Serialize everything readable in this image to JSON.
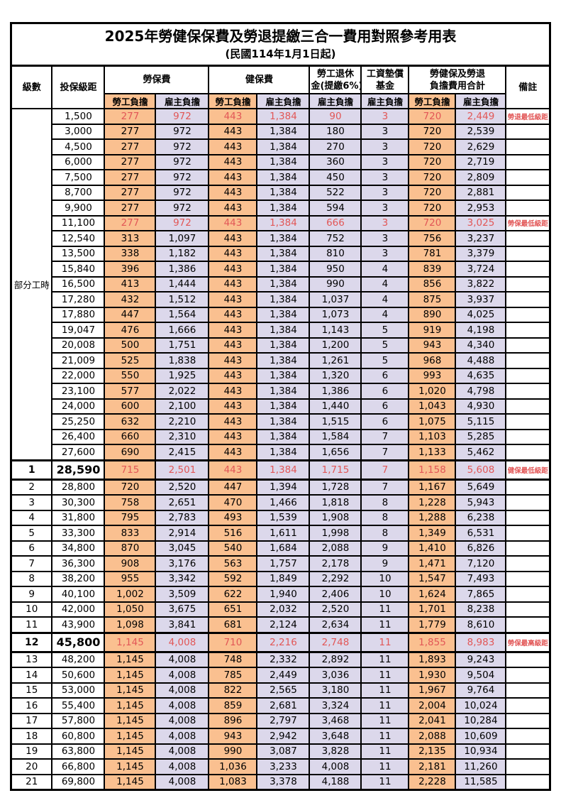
{
  "title": "2025年勞健保保費及勞退提繳三合一費用對照參考用表",
  "subtitle": "(民國114年1月1日起)",
  "header": {
    "level": "級數",
    "bracket": "投保級距",
    "labor_insurance": "勞保費",
    "health_insurance": "健保費",
    "pension_line1": "勞工退休",
    "pension_line2": "金(提繳6%)",
    "wage_fund_line1": "工資墊償",
    "wage_fund_line2": "基金",
    "total_line1": "勞健保及勞退",
    "total_line2": "負擔費用合計",
    "remarks": "備註",
    "employee_share": "勞工負擔",
    "employer_share": "雇主負擔"
  },
  "part_time_label": "部分工時",
  "colors": {
    "employee_fill": "#FAC090",
    "employer_fill": "#DCD8EB",
    "highlight_red": "#E25757",
    "border_black": "#000000"
  },
  "rows": [
    {
      "level": "",
      "bracket": "1,500",
      "li_emp": "277",
      "li_er": "972",
      "hi_emp": "443",
      "hi_er": "1,384",
      "pension": "90",
      "fund": "3",
      "tot_emp": "720",
      "tot_er": "2,449",
      "remark": "勞退最低級距",
      "highlight": true,
      "emphasis": false
    },
    {
      "level": "",
      "bracket": "3,000",
      "li_emp": "277",
      "li_er": "972",
      "hi_emp": "443",
      "hi_er": "1,384",
      "pension": "180",
      "fund": "3",
      "tot_emp": "720",
      "tot_er": "2,539",
      "remark": "",
      "highlight": false,
      "emphasis": false
    },
    {
      "level": "",
      "bracket": "4,500",
      "li_emp": "277",
      "li_er": "972",
      "hi_emp": "443",
      "hi_er": "1,384",
      "pension": "270",
      "fund": "3",
      "tot_emp": "720",
      "tot_er": "2,629",
      "remark": "",
      "highlight": false,
      "emphasis": false
    },
    {
      "level": "",
      "bracket": "6,000",
      "li_emp": "277",
      "li_er": "972",
      "hi_emp": "443",
      "hi_er": "1,384",
      "pension": "360",
      "fund": "3",
      "tot_emp": "720",
      "tot_er": "2,719",
      "remark": "",
      "highlight": false,
      "emphasis": false
    },
    {
      "level": "",
      "bracket": "7,500",
      "li_emp": "277",
      "li_er": "972",
      "hi_emp": "443",
      "hi_er": "1,384",
      "pension": "450",
      "fund": "3",
      "tot_emp": "720",
      "tot_er": "2,809",
      "remark": "",
      "highlight": false,
      "emphasis": false
    },
    {
      "level": "",
      "bracket": "8,700",
      "li_emp": "277",
      "li_er": "972",
      "hi_emp": "443",
      "hi_er": "1,384",
      "pension": "522",
      "fund": "3",
      "tot_emp": "720",
      "tot_er": "2,881",
      "remark": "",
      "highlight": false,
      "emphasis": false
    },
    {
      "level": "",
      "bracket": "9,900",
      "li_emp": "277",
      "li_er": "972",
      "hi_emp": "443",
      "hi_er": "1,384",
      "pension": "594",
      "fund": "3",
      "tot_emp": "720",
      "tot_er": "2,953",
      "remark": "",
      "highlight": false,
      "emphasis": false
    },
    {
      "level": "",
      "bracket": "11,100",
      "li_emp": "277",
      "li_er": "972",
      "hi_emp": "443",
      "hi_er": "1,384",
      "pension": "666",
      "fund": "3",
      "tot_emp": "720",
      "tot_er": "3,025",
      "remark": "勞保最低級距",
      "highlight": true,
      "emphasis": false
    },
    {
      "level": "",
      "bracket": "12,540",
      "li_emp": "313",
      "li_er": "1,097",
      "hi_emp": "443",
      "hi_er": "1,384",
      "pension": "752",
      "fund": "3",
      "tot_emp": "756",
      "tot_er": "3,237",
      "remark": "",
      "highlight": false,
      "emphasis": false
    },
    {
      "level": "",
      "bracket": "13,500",
      "li_emp": "338",
      "li_er": "1,182",
      "hi_emp": "443",
      "hi_er": "1,384",
      "pension": "810",
      "fund": "3",
      "tot_emp": "781",
      "tot_er": "3,379",
      "remark": "",
      "highlight": false,
      "emphasis": false
    },
    {
      "level": "",
      "bracket": "15,840",
      "li_emp": "396",
      "li_er": "1,386",
      "hi_emp": "443",
      "hi_er": "1,384",
      "pension": "950",
      "fund": "4",
      "tot_emp": "839",
      "tot_er": "3,724",
      "remark": "",
      "highlight": false,
      "emphasis": false
    },
    {
      "level": "",
      "bracket": "16,500",
      "li_emp": "413",
      "li_er": "1,444",
      "hi_emp": "443",
      "hi_er": "1,384",
      "pension": "990",
      "fund": "4",
      "tot_emp": "856",
      "tot_er": "3,822",
      "remark": "",
      "highlight": false,
      "emphasis": false
    },
    {
      "level": "",
      "bracket": "17,280",
      "li_emp": "432",
      "li_er": "1,512",
      "hi_emp": "443",
      "hi_er": "1,384",
      "pension": "1,037",
      "fund": "4",
      "tot_emp": "875",
      "tot_er": "3,937",
      "remark": "",
      "highlight": false,
      "emphasis": false
    },
    {
      "level": "",
      "bracket": "17,880",
      "li_emp": "447",
      "li_er": "1,564",
      "hi_emp": "443",
      "hi_er": "1,384",
      "pension": "1,073",
      "fund": "4",
      "tot_emp": "890",
      "tot_er": "4,025",
      "remark": "",
      "highlight": false,
      "emphasis": false
    },
    {
      "level": "",
      "bracket": "19,047",
      "li_emp": "476",
      "li_er": "1,666",
      "hi_emp": "443",
      "hi_er": "1,384",
      "pension": "1,143",
      "fund": "5",
      "tot_emp": "919",
      "tot_er": "4,198",
      "remark": "",
      "highlight": false,
      "emphasis": false
    },
    {
      "level": "",
      "bracket": "20,008",
      "li_emp": "500",
      "li_er": "1,751",
      "hi_emp": "443",
      "hi_er": "1,384",
      "pension": "1,200",
      "fund": "5",
      "tot_emp": "943",
      "tot_er": "4,340",
      "remark": "",
      "highlight": false,
      "emphasis": false
    },
    {
      "level": "",
      "bracket": "21,009",
      "li_emp": "525",
      "li_er": "1,838",
      "hi_emp": "443",
      "hi_er": "1,384",
      "pension": "1,261",
      "fund": "5",
      "tot_emp": "968",
      "tot_er": "4,488",
      "remark": "",
      "highlight": false,
      "emphasis": false
    },
    {
      "level": "",
      "bracket": "22,000",
      "li_emp": "550",
      "li_er": "1,925",
      "hi_emp": "443",
      "hi_er": "1,384",
      "pension": "1,320",
      "fund": "6",
      "tot_emp": "993",
      "tot_er": "4,635",
      "remark": "",
      "highlight": false,
      "emphasis": false
    },
    {
      "level": "",
      "bracket": "23,100",
      "li_emp": "577",
      "li_er": "2,022",
      "hi_emp": "443",
      "hi_er": "1,384",
      "pension": "1,386",
      "fund": "6",
      "tot_emp": "1,020",
      "tot_er": "4,798",
      "remark": "",
      "highlight": false,
      "emphasis": false
    },
    {
      "level": "",
      "bracket": "24,000",
      "li_emp": "600",
      "li_er": "2,100",
      "hi_emp": "443",
      "hi_er": "1,384",
      "pension": "1,440",
      "fund": "6",
      "tot_emp": "1,043",
      "tot_er": "4,930",
      "remark": "",
      "highlight": false,
      "emphasis": false
    },
    {
      "level": "",
      "bracket": "25,250",
      "li_emp": "632",
      "li_er": "2,210",
      "hi_emp": "443",
      "hi_er": "1,384",
      "pension": "1,515",
      "fund": "6",
      "tot_emp": "1,075",
      "tot_er": "5,115",
      "remark": "",
      "highlight": false,
      "emphasis": false
    },
    {
      "level": "",
      "bracket": "26,400",
      "li_emp": "660",
      "li_er": "2,310",
      "hi_emp": "443",
      "hi_er": "1,384",
      "pension": "1,584",
      "fund": "7",
      "tot_emp": "1,103",
      "tot_er": "5,285",
      "remark": "",
      "highlight": false,
      "emphasis": false
    },
    {
      "level": "",
      "bracket": "27,600",
      "li_emp": "690",
      "li_er": "2,415",
      "hi_emp": "443",
      "hi_er": "1,384",
      "pension": "1,656",
      "fund": "7",
      "tot_emp": "1,133",
      "tot_er": "5,462",
      "remark": "",
      "highlight": false,
      "emphasis": false
    },
    {
      "level": "1",
      "bracket": "28,590",
      "li_emp": "715",
      "li_er": "2,501",
      "hi_emp": "443",
      "hi_er": "1,384",
      "pension": "1,715",
      "fund": "7",
      "tot_emp": "1,158",
      "tot_er": "5,608",
      "remark": "健保最低級距",
      "highlight": true,
      "emphasis": true
    },
    {
      "level": "2",
      "bracket": "28,800",
      "li_emp": "720",
      "li_er": "2,520",
      "hi_emp": "447",
      "hi_er": "1,394",
      "pension": "1,728",
      "fund": "7",
      "tot_emp": "1,167",
      "tot_er": "5,649",
      "remark": "",
      "highlight": false,
      "emphasis": false
    },
    {
      "level": "3",
      "bracket": "30,300",
      "li_emp": "758",
      "li_er": "2,651",
      "hi_emp": "470",
      "hi_er": "1,466",
      "pension": "1,818",
      "fund": "8",
      "tot_emp": "1,228",
      "tot_er": "5,943",
      "remark": "",
      "highlight": false,
      "emphasis": false
    },
    {
      "level": "4",
      "bracket": "31,800",
      "li_emp": "795",
      "li_er": "2,783",
      "hi_emp": "493",
      "hi_er": "1,539",
      "pension": "1,908",
      "fund": "8",
      "tot_emp": "1,288",
      "tot_er": "6,238",
      "remark": "",
      "highlight": false,
      "emphasis": false
    },
    {
      "level": "5",
      "bracket": "33,300",
      "li_emp": "833",
      "li_er": "2,914",
      "hi_emp": "516",
      "hi_er": "1,611",
      "pension": "1,998",
      "fund": "8",
      "tot_emp": "1,349",
      "tot_er": "6,531",
      "remark": "",
      "highlight": false,
      "emphasis": false
    },
    {
      "level": "6",
      "bracket": "34,800",
      "li_emp": "870",
      "li_er": "3,045",
      "hi_emp": "540",
      "hi_er": "1,684",
      "pension": "2,088",
      "fund": "9",
      "tot_emp": "1,410",
      "tot_er": "6,826",
      "remark": "",
      "highlight": false,
      "emphasis": false
    },
    {
      "level": "7",
      "bracket": "36,300",
      "li_emp": "908",
      "li_er": "3,176",
      "hi_emp": "563",
      "hi_er": "1,757",
      "pension": "2,178",
      "fund": "9",
      "tot_emp": "1,471",
      "tot_er": "7,120",
      "remark": "",
      "highlight": false,
      "emphasis": false
    },
    {
      "level": "8",
      "bracket": "38,200",
      "li_emp": "955",
      "li_er": "3,342",
      "hi_emp": "592",
      "hi_er": "1,849",
      "pension": "2,292",
      "fund": "10",
      "tot_emp": "1,547",
      "tot_er": "7,493",
      "remark": "",
      "highlight": false,
      "emphasis": false
    },
    {
      "level": "9",
      "bracket": "40,100",
      "li_emp": "1,002",
      "li_er": "3,509",
      "hi_emp": "622",
      "hi_er": "1,940",
      "pension": "2,406",
      "fund": "10",
      "tot_emp": "1,624",
      "tot_er": "7,865",
      "remark": "",
      "highlight": false,
      "emphasis": false
    },
    {
      "level": "10",
      "bracket": "42,000",
      "li_emp": "1,050",
      "li_er": "3,675",
      "hi_emp": "651",
      "hi_er": "2,032",
      "pension": "2,520",
      "fund": "11",
      "tot_emp": "1,701",
      "tot_er": "8,238",
      "remark": "",
      "highlight": false,
      "emphasis": false
    },
    {
      "level": "11",
      "bracket": "43,900",
      "li_emp": "1,098",
      "li_er": "3,841",
      "hi_emp": "681",
      "hi_er": "2,124",
      "pension": "2,634",
      "fund": "11",
      "tot_emp": "1,779",
      "tot_er": "8,610",
      "remark": "",
      "highlight": false,
      "emphasis": false
    },
    {
      "level": "12",
      "bracket": "45,800",
      "li_emp": "1,145",
      "li_er": "4,008",
      "hi_emp": "710",
      "hi_er": "2,216",
      "pension": "2,748",
      "fund": "11",
      "tot_emp": "1,855",
      "tot_er": "8,983",
      "remark": "勞保最高級距",
      "highlight": true,
      "emphasis": true
    },
    {
      "level": "13",
      "bracket": "48,200",
      "li_emp": "1,145",
      "li_er": "4,008",
      "hi_emp": "748",
      "hi_er": "2,332",
      "pension": "2,892",
      "fund": "11",
      "tot_emp": "1,893",
      "tot_er": "9,243",
      "remark": "",
      "highlight": false,
      "emphasis": false
    },
    {
      "level": "14",
      "bracket": "50,600",
      "li_emp": "1,145",
      "li_er": "4,008",
      "hi_emp": "785",
      "hi_er": "2,449",
      "pension": "3,036",
      "fund": "11",
      "tot_emp": "1,930",
      "tot_er": "9,504",
      "remark": "",
      "highlight": false,
      "emphasis": false
    },
    {
      "level": "15",
      "bracket": "53,000",
      "li_emp": "1,145",
      "li_er": "4,008",
      "hi_emp": "822",
      "hi_er": "2,565",
      "pension": "3,180",
      "fund": "11",
      "tot_emp": "1,967",
      "tot_er": "9,764",
      "remark": "",
      "highlight": false,
      "emphasis": false
    },
    {
      "level": "16",
      "bracket": "55,400",
      "li_emp": "1,145",
      "li_er": "4,008",
      "hi_emp": "859",
      "hi_er": "2,681",
      "pension": "3,324",
      "fund": "11",
      "tot_emp": "2,004",
      "tot_er": "10,024",
      "remark": "",
      "highlight": false,
      "emphasis": false
    },
    {
      "level": "17",
      "bracket": "57,800",
      "li_emp": "1,145",
      "li_er": "4,008",
      "hi_emp": "896",
      "hi_er": "2,797",
      "pension": "3,468",
      "fund": "11",
      "tot_emp": "2,041",
      "tot_er": "10,284",
      "remark": "",
      "highlight": false,
      "emphasis": false
    },
    {
      "level": "18",
      "bracket": "60,800",
      "li_emp": "1,145",
      "li_er": "4,008",
      "hi_emp": "943",
      "hi_er": "2,942",
      "pension": "3,648",
      "fund": "11",
      "tot_emp": "2,088",
      "tot_er": "10,609",
      "remark": "",
      "highlight": false,
      "emphasis": false
    },
    {
      "level": "19",
      "bracket": "63,800",
      "li_emp": "1,145",
      "li_er": "4,008",
      "hi_emp": "990",
      "hi_er": "3,087",
      "pension": "3,828",
      "fund": "11",
      "tot_emp": "2,135",
      "tot_er": "10,934",
      "remark": "",
      "highlight": false,
      "emphasis": false
    },
    {
      "level": "20",
      "bracket": "66,800",
      "li_emp": "1,145",
      "li_er": "4,008",
      "hi_emp": "1,036",
      "hi_er": "3,233",
      "pension": "4,008",
      "fund": "11",
      "tot_emp": "2,181",
      "tot_er": "11,260",
      "remark": "",
      "highlight": false,
      "emphasis": false
    },
    {
      "level": "21",
      "bracket": "69,800",
      "li_emp": "1,145",
      "li_er": "4,008",
      "hi_emp": "1,083",
      "hi_er": "3,378",
      "pension": "4,188",
      "fund": "11",
      "tot_emp": "2,228",
      "tot_er": "11,585",
      "remark": "",
      "highlight": false,
      "emphasis": false
    }
  ]
}
